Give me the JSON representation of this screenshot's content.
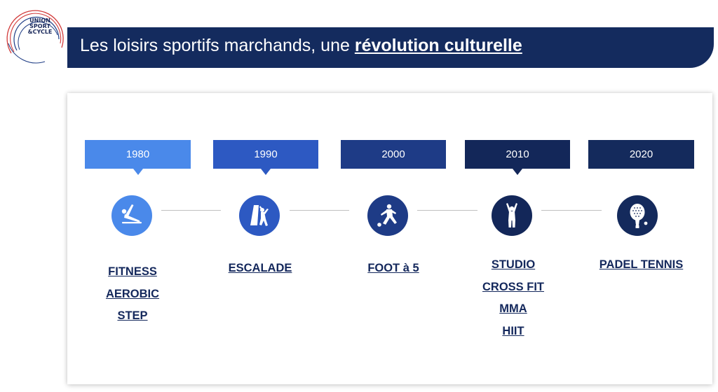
{
  "logo": {
    "lines": [
      "UNION",
      "SPORT",
      "&CYCLE"
    ],
    "colors": {
      "blue": "#1f3d85",
      "red": "#d23b3b"
    }
  },
  "header": {
    "title_plain": "Les loisirs sportifs marchands, une ",
    "title_highlight": "révolution culturelle"
  },
  "timeline": [
    {
      "year": "1980",
      "color": "#4a89ea",
      "icon": "fitness-icon",
      "activities": [
        "FITNESS",
        "AEROBIC",
        "STEP"
      ]
    },
    {
      "year": "1990",
      "color": "#2d59c2",
      "icon": "climbing-icon",
      "activities": [
        "ESCALADE"
      ]
    },
    {
      "year": "2000",
      "color": "#1e3b86",
      "icon": "football-icon",
      "activities": [
        "FOOT à 5"
      ]
    },
    {
      "year": "2010",
      "color": "#132759",
      "icon": "workout-icon",
      "activities": [
        "STUDIO",
        "CROSS FIT",
        "MMA",
        "HIIT"
      ]
    },
    {
      "year": "2020",
      "color": "#142a5c",
      "icon": "padel-racket-icon",
      "activities": [
        "PADEL TENNIS"
      ]
    }
  ]
}
